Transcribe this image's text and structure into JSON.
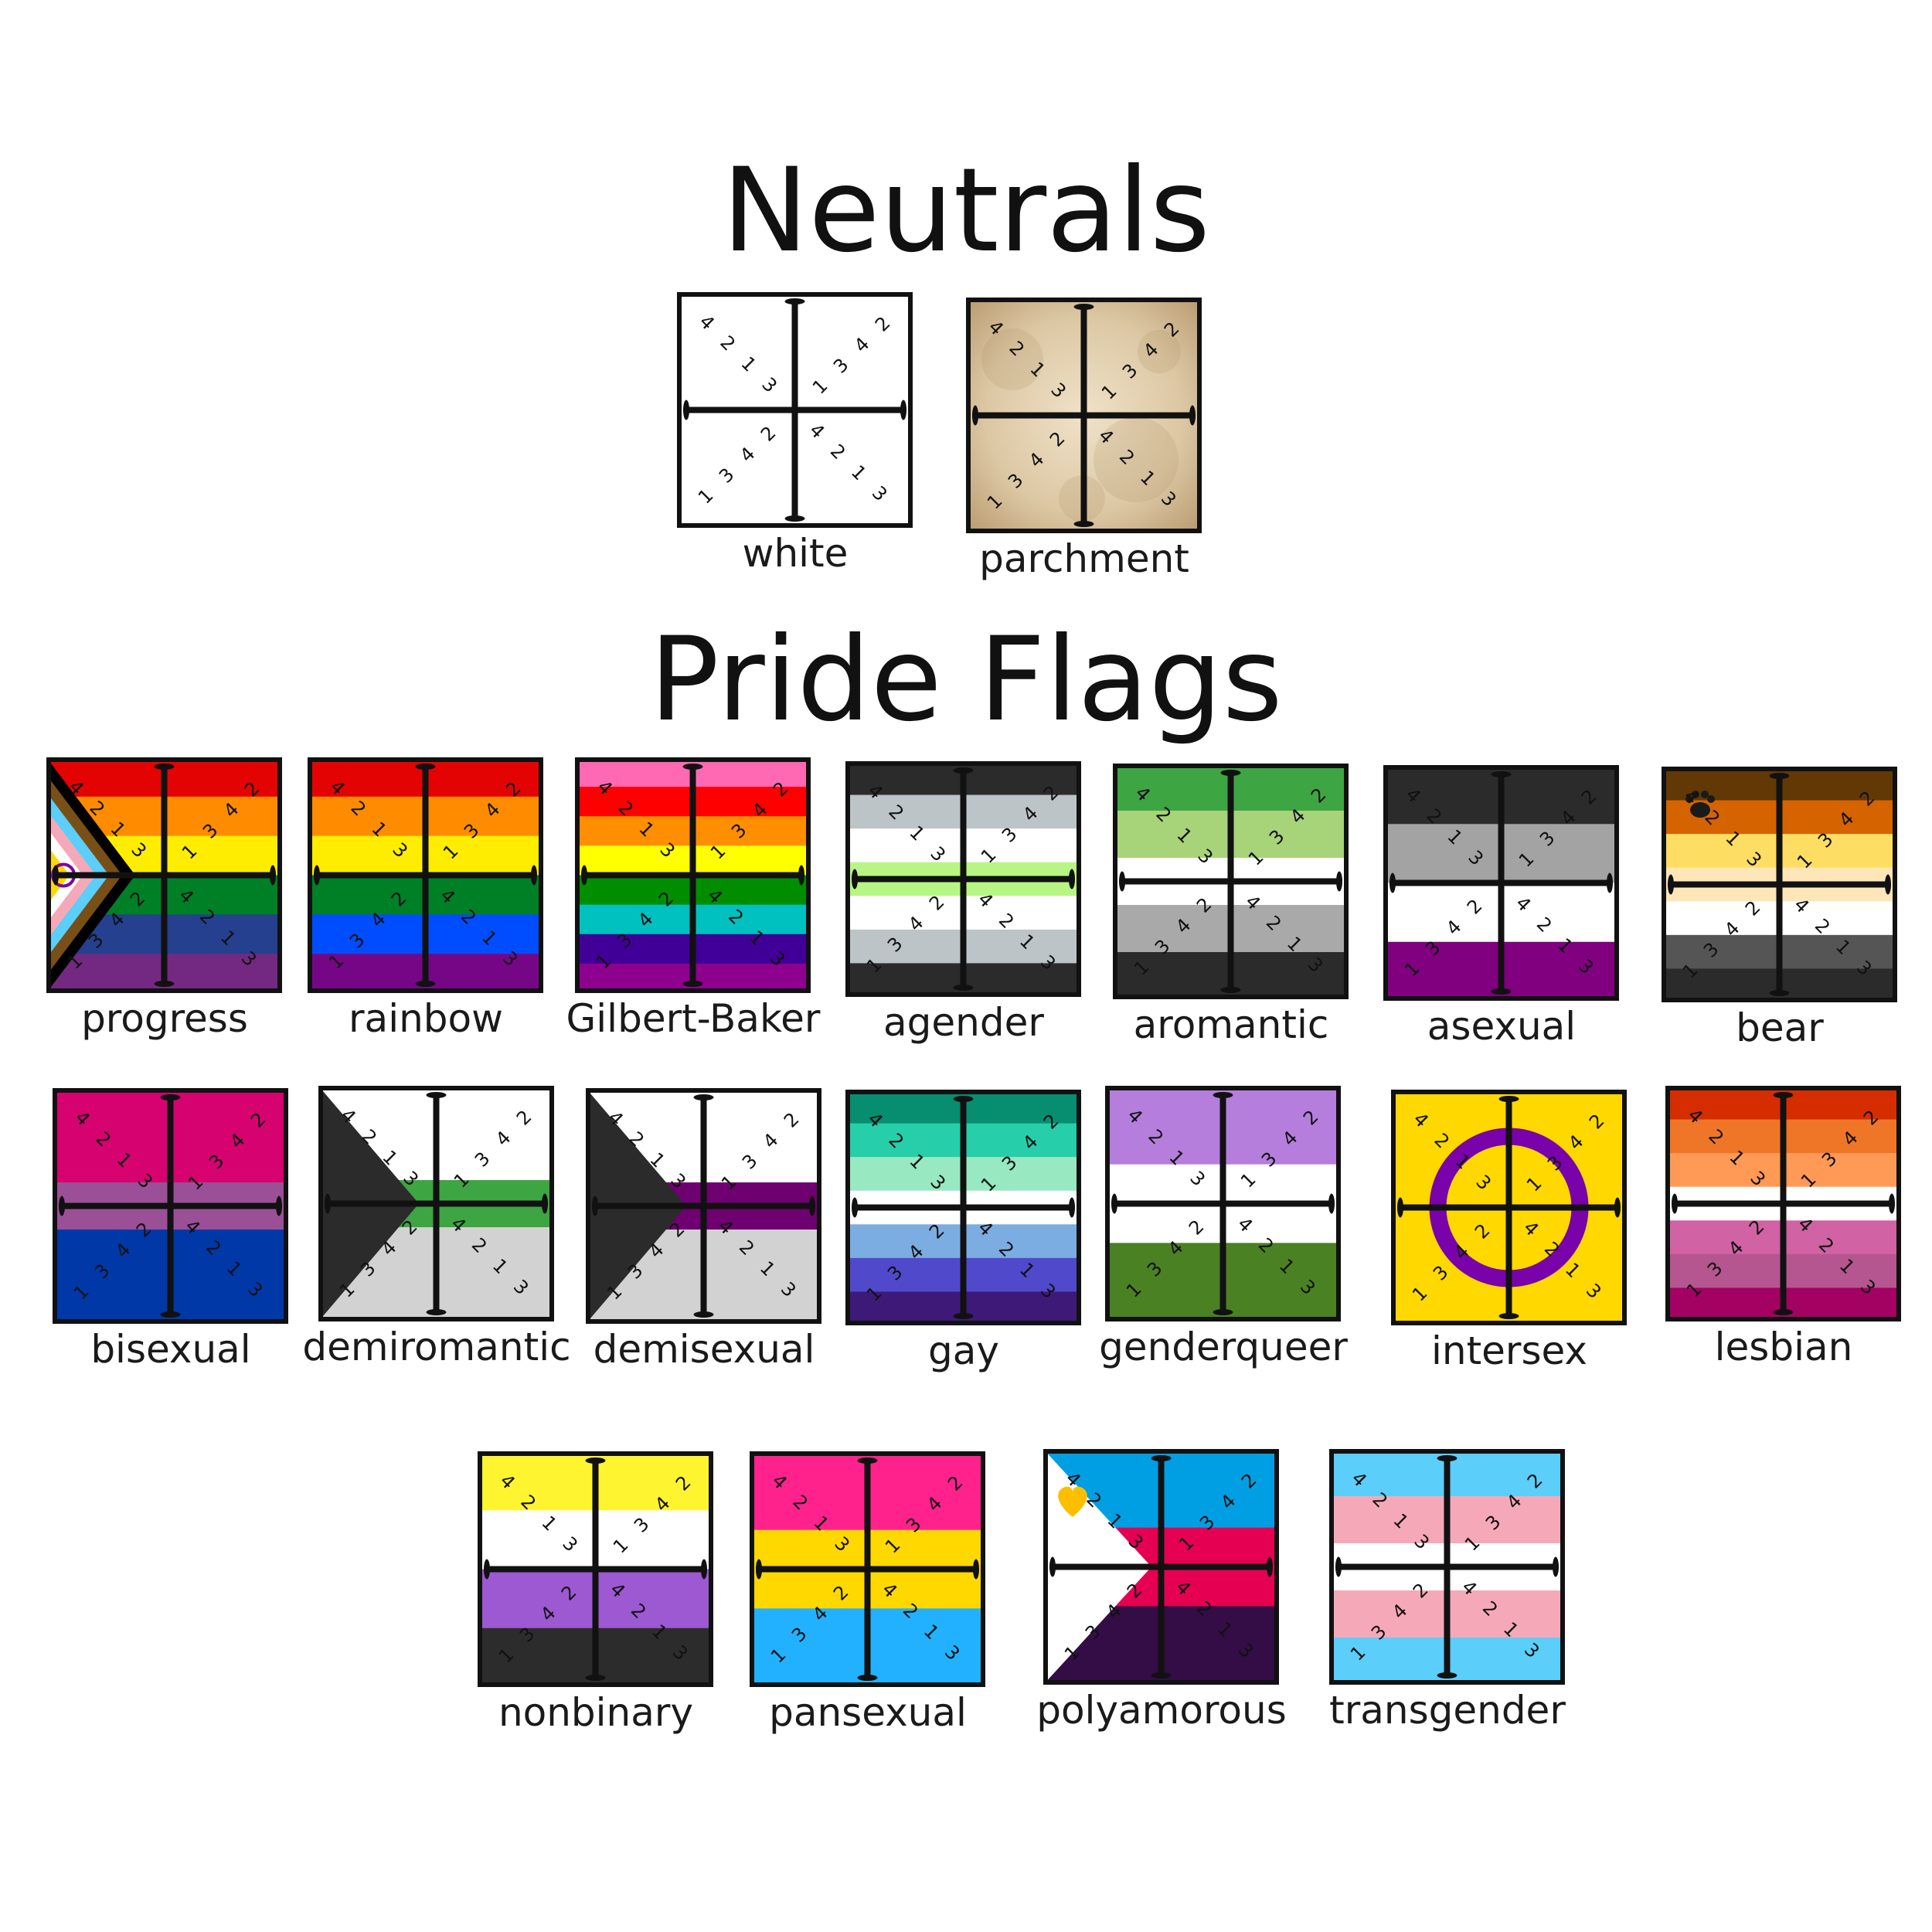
{
  "sections": {
    "neutrals_title": "Neutrals",
    "pride_title": "Pride Flags"
  },
  "digits": {
    "top_left": [
      "4",
      "2",
      "1",
      "3"
    ],
    "top_right": [
      "1",
      "3",
      "4",
      "2"
    ],
    "bottom_left": [
      "2",
      "4",
      "3",
      "1"
    ],
    "bottom_right": [
      "4",
      "2",
      "1",
      "3"
    ]
  },
  "tiles": [
    {
      "id": "white",
      "label": "white",
      "group": "neutrals",
      "stripes": [
        "#ffffff"
      ]
    },
    {
      "id": "parchment",
      "label": "parchment",
      "group": "neutrals",
      "stripes": [
        "#d9c3a0"
      ],
      "texture": "parchment"
    },
    {
      "id": "progress",
      "label": "progress",
      "group": "pride",
      "stripes": [
        "#e40303",
        "#ff8c00",
        "#ffed00",
        "#008026",
        "#24408e",
        "#732982"
      ],
      "chevrons": [
        "#000000",
        "#784f17",
        "#5bcefa",
        "#f5a9b8",
        "#ffffff",
        "#ffd800"
      ],
      "circle": "#7902aa"
    },
    {
      "id": "rainbow",
      "label": "rainbow",
      "group": "pride",
      "stripes": [
        "#e40303",
        "#ff8c00",
        "#ffed00",
        "#008026",
        "#004dff",
        "#750787"
      ]
    },
    {
      "id": "gilbert-baker",
      "label": "Gilbert-Baker",
      "group": "pride",
      "stripes": [
        "#ff69b4",
        "#ff0000",
        "#ff8e00",
        "#ffff00",
        "#008e00",
        "#00c0c0",
        "#400098",
        "#8e008e"
      ]
    },
    {
      "id": "agender",
      "label": "agender",
      "group": "pride",
      "stripes": [
        "#2b2b2b",
        "#bcc4c7",
        "#ffffff",
        "#b7f684",
        "#ffffff",
        "#bcc4c7",
        "#2b2b2b"
      ]
    },
    {
      "id": "aromantic",
      "label": "aromantic",
      "group": "pride",
      "stripes": [
        "#3da542",
        "#a7d379",
        "#ffffff",
        "#a9a9a9",
        "#2b2b2b"
      ]
    },
    {
      "id": "asexual",
      "label": "asexual",
      "group": "pride",
      "stripes": [
        "#2b2b2b",
        "#a3a3a3",
        "#ffffff",
        "#800080"
      ]
    },
    {
      "id": "bear",
      "label": "bear",
      "group": "pride",
      "stripes": [
        "#623804",
        "#d56300",
        "#fedd63",
        "#fee6b8",
        "#ffffff",
        "#555555",
        "#2b2b2b"
      ],
      "emblem": "paw-print"
    },
    {
      "id": "bisexual",
      "label": "bisexual",
      "group": "pride",
      "stripes": [
        "#d60270",
        "#d60270",
        "#9b4f96",
        "#0038a8",
        "#0038a8"
      ]
    },
    {
      "id": "demiromantic",
      "label": "demiromantic",
      "group": "pride",
      "stripes": [
        "#ffffff",
        "#ffffff",
        "#3da542",
        "#d2d2d2",
        "#d2d2d2"
      ],
      "triangle": "#2b2b2b"
    },
    {
      "id": "demisexual",
      "label": "demisexual",
      "group": "pride",
      "stripes": [
        "#ffffff",
        "#ffffff",
        "#6e0070",
        "#d2d2d2",
        "#d2d2d2"
      ],
      "triangle": "#2b2b2b"
    },
    {
      "id": "gay",
      "label": "gay",
      "group": "pride",
      "stripes": [
        "#078d70",
        "#26ceaa",
        "#98e8c1",
        "#ffffff",
        "#7bade2",
        "#5049cc",
        "#3d1a78"
      ]
    },
    {
      "id": "genderqueer",
      "label": "genderqueer",
      "group": "pride",
      "stripes": [
        "#b57edc",
        "#ffffff",
        "#4a8123"
      ]
    },
    {
      "id": "intersex",
      "label": "intersex",
      "group": "pride",
      "stripes": [
        "#ffd800"
      ],
      "ring": "#7902aa"
    },
    {
      "id": "lesbian",
      "label": "lesbian",
      "group": "pride",
      "stripes": [
        "#d52d00",
        "#ef7627",
        "#ff9a56",
        "#ffffff",
        "#d162a4",
        "#b55690",
        "#a30262"
      ]
    },
    {
      "id": "nonbinary",
      "label": "nonbinary",
      "group": "pride",
      "stripes": [
        "#fff430",
        "#ffffff",
        "#9c59d1",
        "#2c2c2c"
      ]
    },
    {
      "id": "pansexual",
      "label": "pansexual",
      "group": "pride",
      "stripes": [
        "#ff218c",
        "#ffd800",
        "#21b1ff"
      ]
    },
    {
      "id": "polyamorous",
      "label": "polyamorous",
      "group": "pride",
      "stripes": [
        "#009fe3",
        "#e50051",
        "#340c46"
      ],
      "triangle": "#ffffff",
      "emblem": "heart",
      "emblem_color": "#fcbf00"
    },
    {
      "id": "transgender",
      "label": "transgender",
      "group": "pride",
      "stripes": [
        "#5bcefa",
        "#f5a9b8",
        "#ffffff",
        "#f5a9b8",
        "#5bcefa"
      ]
    }
  ]
}
